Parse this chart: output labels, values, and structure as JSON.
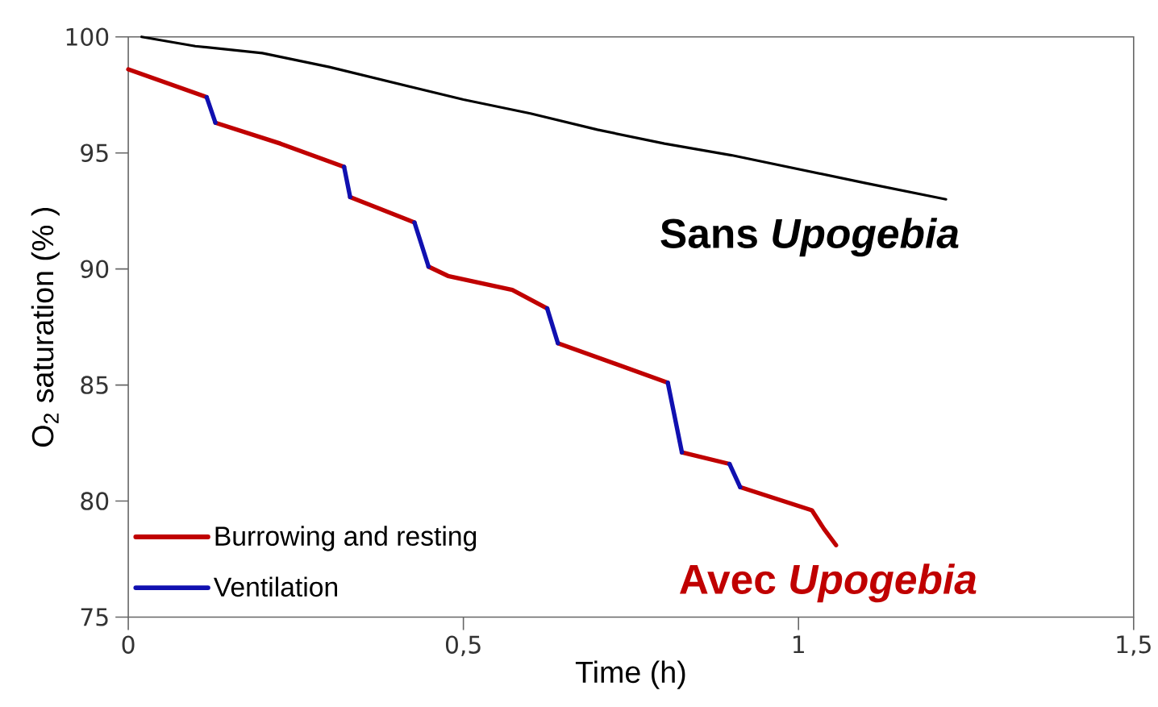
{
  "chart_data": {
    "type": "line",
    "xlabel": "Time  (h)",
    "ylabel": "O$_{2}$ saturation (% )",
    "series": [
      {
        "color": "#000000",
        "x": [
          0.02,
          0.1,
          0.2,
          0.3,
          0.4,
          0.5,
          0.6,
          0.7,
          0.8,
          0.9,
          1.0,
          1.1,
          1.22
        ],
        "values": [
          100.0,
          99.6,
          99.3,
          98.7,
          98.0,
          97.3,
          96.7,
          96.0,
          95.4,
          94.9,
          94.3,
          93.7,
          93.0
        ]
      },
      {
        "name": "Burrowing and resting",
        "color": "#c00000",
        "x": [
          0,
          0.117,
          null,
          0.13,
          0.227,
          0.322,
          null,
          0.331,
          0.427,
          null,
          0.448,
          0.477,
          0.573,
          0.625,
          null,
          0.641,
          0.805,
          null,
          0.826,
          0.897,
          null,
          0.913,
          1.02,
          1.038,
          1.056
        ],
        "values": [
          98.6,
          97.4,
          null,
          96.3,
          95.4,
          94.4,
          null,
          93.1,
          92.0,
          null,
          90.1,
          89.7,
          89.1,
          88.3,
          null,
          86.8,
          85.1,
          null,
          82.1,
          81.6,
          null,
          80.6,
          79.6,
          78.8,
          78.1
        ]
      },
      {
        "name": "Ventilation",
        "color": "#1010b0",
        "x": [
          0.117,
          0.13,
          null,
          0.322,
          0.331,
          null,
          0.427,
          0.448,
          null,
          0.625,
          0.641,
          null,
          0.805,
          0.826,
          null,
          0.897,
          0.913
        ],
        "values": [
          97.4,
          96.3,
          null,
          94.4,
          93.1,
          null,
          92.0,
          90.1,
          null,
          88.3,
          86.8,
          null,
          85.1,
          82.1,
          null,
          81.6,
          80.6
        ]
      }
    ],
    "xlim": [
      0,
      1.5
    ],
    "ylim": [
      75,
      100
    ],
    "xticks": [
      0,
      {
        "value": 0.5,
        "label": "0,5"
      },
      1,
      {
        "value": 1.5,
        "label": "1,5"
      }
    ],
    "yticks": [
      75,
      80,
      85,
      90,
      95,
      100
    ],
    "legend": "bottom left",
    "grid": false,
    "annotations": [
      {
        "text": "Sans *Upogebia*",
        "x": 1.22,
        "y": 93.0
      },
      {
        "text": "Avec *Upogebia*",
        "x": 1.056,
        "y": 78.1
      }
    ]
  }
}
